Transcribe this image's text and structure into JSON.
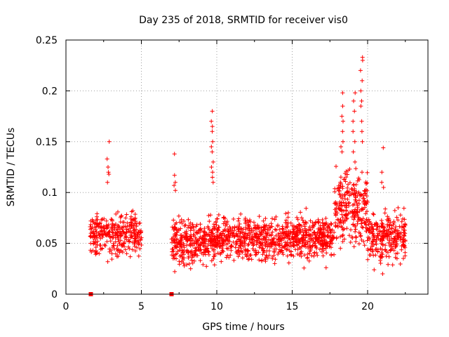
{
  "chart_data": {
    "type": "scatter",
    "title": "Day 235 of 2018, SRMTID for receiver vis0",
    "xlabel": "GPS time / hours",
    "ylabel": "SRMTID / TECUs",
    "xlim": [
      0,
      24
    ],
    "ylim": [
      0,
      0.25
    ],
    "xticks": [
      0,
      5,
      10,
      15,
      20
    ],
    "xtick_labels": [
      "0",
      "5",
      "10",
      "15",
      "20"
    ],
    "yticks": [
      0,
      0.05,
      0.1,
      0.15,
      0.2,
      0.25
    ],
    "ytick_labels": [
      "0",
      "0.05",
      "0.1",
      "0.15",
      "0.2",
      "0.25"
    ],
    "grid": true,
    "marker": "+",
    "color": "#ff0000",
    "zero_markers": {
      "x": [
        1.65,
        7.0
      ],
      "y": 0
    },
    "segments": [
      {
        "x_start": 1.6,
        "x_end": 5.0,
        "count": 320,
        "base": 0.058,
        "spread": 0.018
      },
      {
        "x_start": 7.0,
        "x_end": 9.4,
        "count": 260,
        "base": 0.052,
        "spread": 0.02
      },
      {
        "x_start": 9.4,
        "x_end": 17.8,
        "count": 900,
        "base": 0.055,
        "spread": 0.018
      },
      {
        "x_start": 17.8,
        "x_end": 20.0,
        "count": 260,
        "base": 0.085,
        "spread": 0.03
      },
      {
        "x_start": 20.0,
        "x_end": 22.5,
        "count": 260,
        "base": 0.055,
        "spread": 0.02
      }
    ],
    "peaks": [
      {
        "x": 2.8,
        "values": [
          0.15,
          0.133,
          0.125,
          0.12,
          0.118,
          0.11
        ]
      },
      {
        "x": 7.2,
        "values": [
          0.138,
          0.117,
          0.11,
          0.107,
          0.102
        ]
      },
      {
        "x": 9.7,
        "values": [
          0.18,
          0.17,
          0.165,
          0.16,
          0.15,
          0.145,
          0.14,
          0.13,
          0.125,
          0.12,
          0.115,
          0.11
        ]
      },
      {
        "x": 18.3,
        "values": [
          0.198,
          0.185,
          0.175,
          0.17,
          0.16,
          0.15,
          0.145,
          0.14
        ]
      },
      {
        "x": 19.1,
        "values": [
          0.198,
          0.19,
          0.18,
          0.17,
          0.16,
          0.15,
          0.14,
          0.13
        ]
      },
      {
        "x": 19.6,
        "values": [
          0.233,
          0.23,
          0.22,
          0.21,
          0.2,
          0.19,
          0.185,
          0.17,
          0.16,
          0.15
        ]
      },
      {
        "x": 21.0,
        "values": [
          0.144,
          0.12,
          0.11,
          0.105
        ]
      }
    ]
  }
}
